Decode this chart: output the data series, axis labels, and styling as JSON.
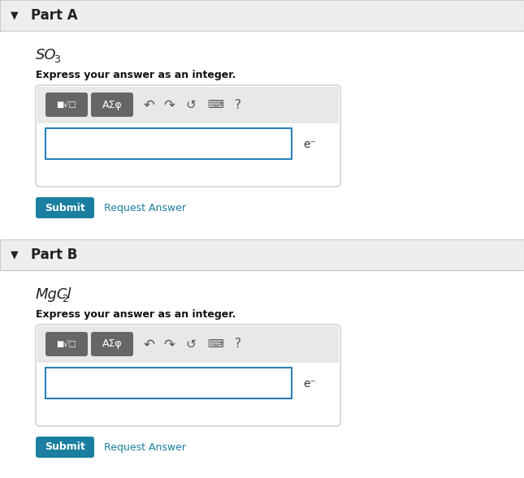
{
  "bg_color": "#f5f5f5",
  "white": "#ffffff",
  "part_header_bg": "#eeeeee",
  "part_header_text_color": "#222222",
  "border_color": "#cccccc",
  "input_border_color": "#2980b9",
  "toolbar_bg": "#dddddd",
  "toolbar_btn_bg": "#666666",
  "toolbar_btn_text": "#ffffff",
  "submit_bg": "#1a7fa0",
  "submit_text": "#ffffff",
  "request_answer_color": "#1a7fa0",
  "label_color": "#222222",
  "formula_color": "#222222",
  "instruction_color": "#111111",
  "e_minus_color": "#333333",
  "part_a_label": "Part A",
  "part_b_label": "Part B",
  "formula_a": "SO",
  "formula_a_sub": "3",
  "formula_b": "MgCl",
  "formula_b_sub": "2",
  "instruction": "Express your answer as an integer.",
  "submit_label": "Submit",
  "request_label": "Request Answer",
  "e_minus_label": "e⁻",
  "toolbar_symbols": [
    "■√□",
    "AΣϕ",
    "↶",
    "↷",
    "↺",
    "⌸",
    "?"
  ]
}
